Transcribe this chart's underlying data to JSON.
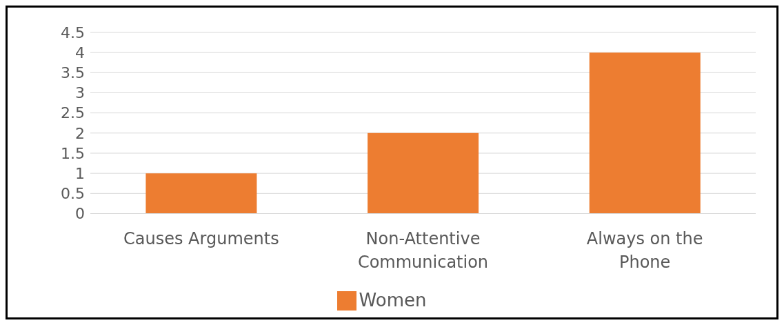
{
  "chart_data": {
    "type": "bar",
    "categories": [
      "Causes Arguments",
      "Non-Attentive Communication",
      "Always on the Phone"
    ],
    "series": [
      {
        "name": "Women",
        "color": "#ed7d31",
        "values": [
          1,
          2,
          4
        ]
      }
    ],
    "ylim": [
      0,
      4.5
    ],
    "yticks": [
      0,
      0.5,
      1,
      1.5,
      2,
      2.5,
      3,
      3.5,
      4,
      4.5
    ],
    "grid": "y",
    "legend": "bottom"
  }
}
